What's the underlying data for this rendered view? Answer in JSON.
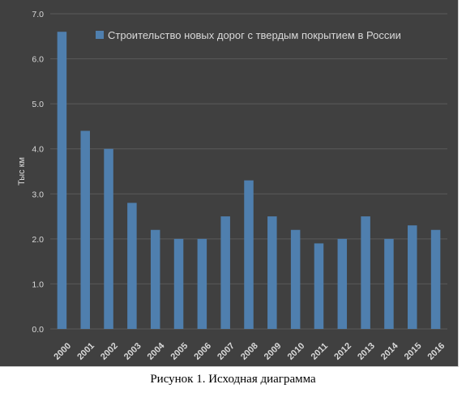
{
  "caption": "Рисунок 1. Исходная диаграмма",
  "colors": {
    "background": "#404040",
    "grid": "#5a5a5a",
    "bar": "#4f7fae",
    "text": "#d9d9d9"
  },
  "chart_data": {
    "type": "bar",
    "title": "",
    "xlabel": "",
    "ylabel": "Тыс км",
    "ylim": [
      0,
      7
    ],
    "yticks": [
      "0.0",
      "1.0",
      "2.0",
      "3.0",
      "4.0",
      "5.0",
      "6.0",
      "7.0"
    ],
    "grid": true,
    "legend_position": "top-right",
    "categories": [
      "2000",
      "2001",
      "2002",
      "2003",
      "2004",
      "2005",
      "2006",
      "2007",
      "2008",
      "2009",
      "2010",
      "2011",
      "2012",
      "2013",
      "2014",
      "2015",
      "2016"
    ],
    "series": [
      {
        "name": "Строительство новых дорог с твердым покрытием в России",
        "values": [
          6.6,
          4.4,
          4.0,
          2.8,
          2.2,
          2.0,
          2.0,
          2.5,
          3.3,
          2.5,
          2.2,
          1.9,
          2.0,
          2.5,
          2.0,
          2.3,
          2.2
        ]
      }
    ]
  }
}
